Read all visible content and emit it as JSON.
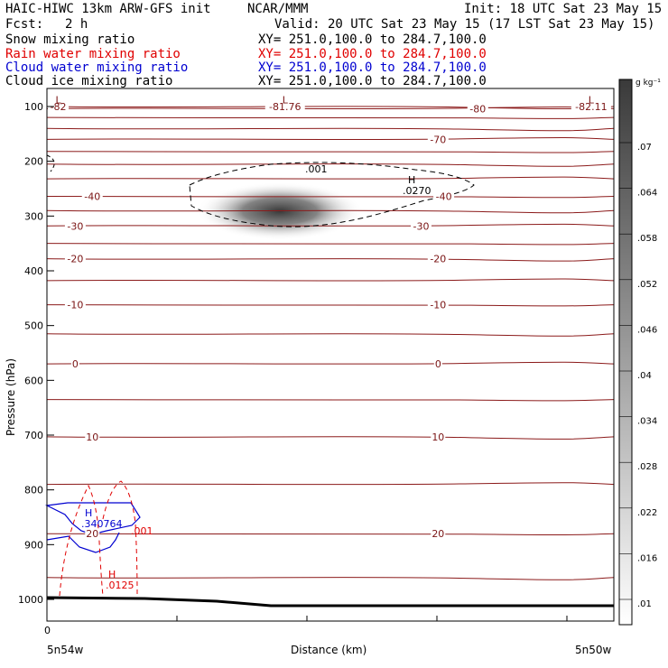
{
  "header": {
    "title": "HAIC-HIWC 13km ARW-GFS init",
    "org": "NCAR/MMM",
    "init": "Init: 18 UTC Sat 23 May 15",
    "fcst_label": "Fcst:",
    "fcst_value": "2 h",
    "valid": "Valid: 20 UTC Sat 23 May 15 (17 LST Sat 23 May 15)"
  },
  "fields": [
    {
      "name": "Snow mixing ratio",
      "xy": "XY= 251.0,100.0 to 284.7,100.0",
      "color": "#000000"
    },
    {
      "name": "Rain water mixing ratio",
      "xy": "XY= 251.0,100.0 to 284.7,100.0",
      "color": "#e00000"
    },
    {
      "name": "Cloud water mixing ratio",
      "xy": "XY= 251.0,100.0 to 284.7,100.0",
      "color": "#0000d0"
    },
    {
      "name": "Cloud ice mixing ratio",
      "xy": "XY= 251.0,100.0 to 284.7,100.0",
      "color": "#000000"
    }
  ],
  "chart_data": {
    "type": "cross-section",
    "xlabel": "Distance (km)",
    "ylabel": "Pressure (hPa)",
    "x_tick_labels": [
      "0"
    ],
    "x_end_labels": [
      "5n54w",
      "5n50w"
    ],
    "y_ticks": [
      100,
      200,
      300,
      400,
      500,
      600,
      700,
      800,
      900,
      1000
    ],
    "ylim": [
      1000,
      100
    ],
    "temperature_contours": {
      "color": "#8b1a1a",
      "labels": [
        {
          "value": "-82",
          "x": 0.02,
          "p": 100
        },
        {
          "value": "-81.76",
          "x": 0.42,
          "p": 100
        },
        {
          "value": "-82.11",
          "x": 0.96,
          "p": 100
        },
        {
          "value": "-80",
          "x": 0.76,
          "p": 104
        },
        {
          "value": "-70",
          "x": 0.69,
          "p": 160
        },
        {
          "value": "-40",
          "x": 0.08,
          "p": 264
        },
        {
          "value": "-40",
          "x": 0.7,
          "p": 264
        },
        {
          "value": "-30",
          "x": 0.05,
          "p": 318
        },
        {
          "value": "-30",
          "x": 0.66,
          "p": 318
        },
        {
          "value": "-20",
          "x": 0.05,
          "p": 378
        },
        {
          "value": "-20",
          "x": 0.69,
          "p": 378
        },
        {
          "value": "-10",
          "x": 0.05,
          "p": 462
        },
        {
          "value": "-10",
          "x": 0.69,
          "p": 462
        },
        {
          "value": "0",
          "x": 0.05,
          "p": 570
        },
        {
          "value": "0",
          "x": 0.69,
          "p": 570
        },
        {
          "value": "10",
          "x": 0.08,
          "p": 703
        },
        {
          "value": "10",
          "x": 0.69,
          "p": 703
        },
        {
          "value": "20",
          "x": 0.08,
          "p": 880
        },
        {
          "value": "20",
          "x": 0.69,
          "p": 880
        }
      ],
      "low_markers": [
        {
          "label": "L",
          "x": 0.02,
          "p": 88
        },
        {
          "label": "L",
          "x": 0.42,
          "p": 88
        },
        {
          "label": "L",
          "x": 0.96,
          "p": 88
        }
      ]
    },
    "cloud_ice_contour": {
      "color": "#000000",
      "labels": [
        ".001"
      ],
      "max_label": "H",
      "max_value": ".0270",
      "x": 0.63,
      "p": 267
    },
    "cloud_water": {
      "color": "#0000d0",
      "max_label": "H",
      "max_value": ".340764",
      "x": 0.08,
      "p": 855
    },
    "rain_water": {
      "color": "#e00000",
      "labels": [
        ".001"
      ],
      "max_label": "H",
      "max_value": ".0125",
      "x": 0.11,
      "p": 970
    },
    "terrain_color": "#000000",
    "colorbar": {
      "unit": "g kg⁻¹",
      "labels": [
        ".07",
        ".064",
        ".058",
        ".052",
        ".046",
        ".04",
        ".034",
        ".028",
        ".022",
        ".016",
        ".01"
      ]
    }
  }
}
